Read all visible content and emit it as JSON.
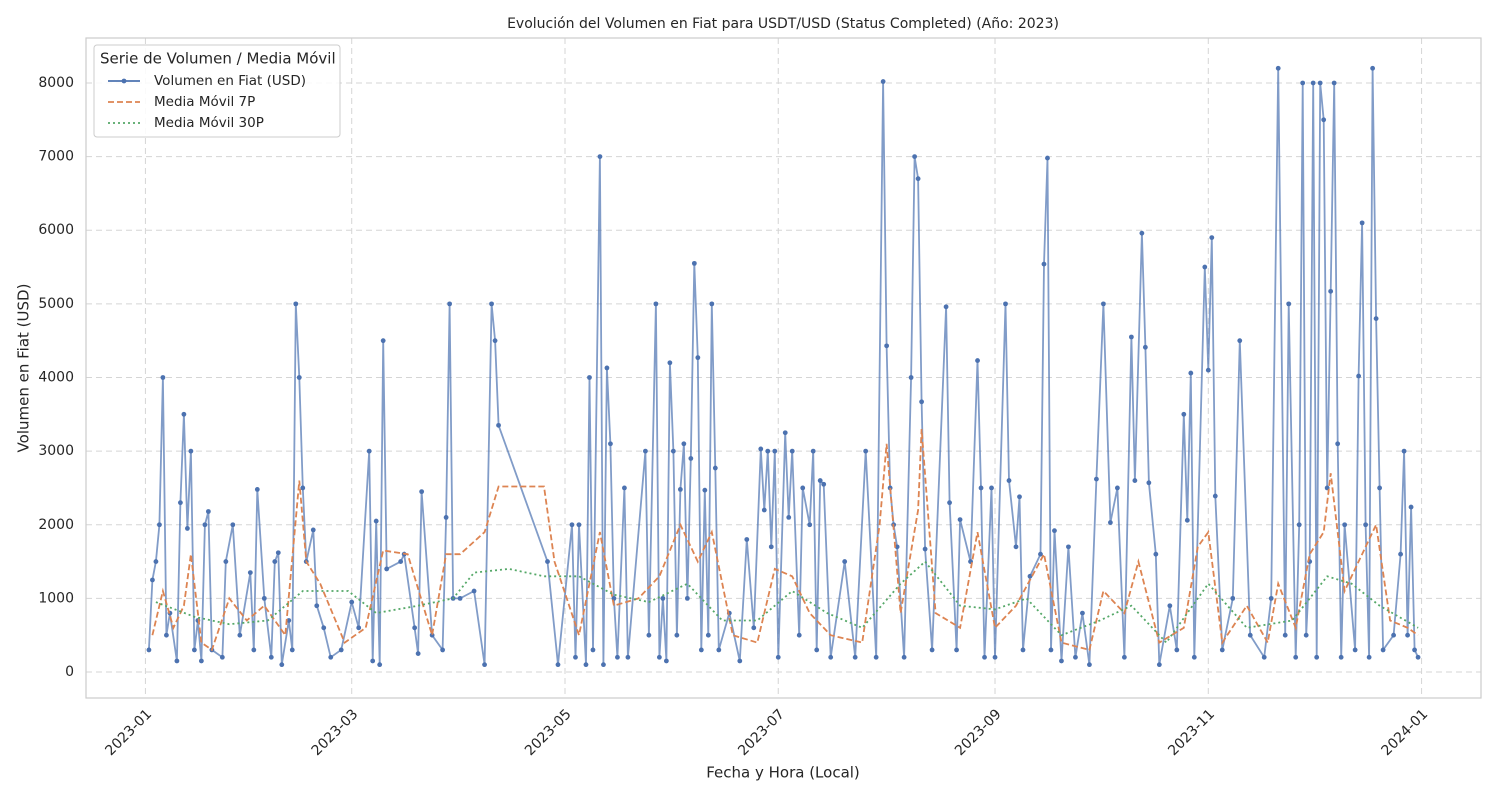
{
  "chart_data": {
    "type": "line",
    "title": "Evolución del Volumen en Fiat para USDT/USD (Status Completed) (Año: 2023)",
    "x_label": "Fecha y Hora (Local)",
    "y_label": "Volumen en Fiat (USD)",
    "legend_title": "Serie de Volumen / Media Móvil",
    "legend_position": "upper-left",
    "grid": true,
    "xlim": [
      "2022-12-15",
      "2024-01-18"
    ],
    "ylim": [
      -353,
      8611
    ],
    "xticks": [
      {
        "value": "2023-01-01",
        "label": "2023-01"
      },
      {
        "value": "2023-03-01",
        "label": "2023-03"
      },
      {
        "value": "2023-05-01",
        "label": "2023-05"
      },
      {
        "value": "2023-07-01",
        "label": "2023-07"
      },
      {
        "value": "2023-09-01",
        "label": "2023-09"
      },
      {
        "value": "2023-11-01",
        "label": "2023-11"
      },
      {
        "value": "2024-01-01",
        "label": "2024-01"
      }
    ],
    "yticks": [
      0,
      1000,
      2000,
      3000,
      4000,
      5000,
      6000,
      7000,
      8000
    ],
    "series": [
      {
        "name": "Volumen en Fiat (USD)",
        "color": "#4c72b0",
        "linestyle": "solid",
        "marker": "o",
        "x": [
          "2023-01-02",
          "2023-01-03",
          "2023-01-04",
          "2023-01-05",
          "2023-01-06",
          "2023-01-07",
          "2023-01-08",
          "2023-01-10",
          "2023-01-11",
          "2023-01-12",
          "2023-01-13",
          "2023-01-14",
          "2023-01-15",
          "2023-01-16",
          "2023-01-17",
          "2023-01-18",
          "2023-01-19",
          "2023-01-20",
          "2023-01-23",
          "2023-01-24",
          "2023-01-26",
          "2023-01-28",
          "2023-01-31",
          "2023-02-01",
          "2023-02-02",
          "2023-02-04",
          "2023-02-06",
          "2023-02-07",
          "2023-02-08",
          "2023-02-09",
          "2023-02-11",
          "2023-02-12",
          "2023-02-13",
          "2023-02-14",
          "2023-02-15",
          "2023-02-16",
          "2023-02-18",
          "2023-02-19",
          "2023-02-21",
          "2023-02-23",
          "2023-02-26",
          "2023-03-01",
          "2023-03-03",
          "2023-03-06",
          "2023-03-07",
          "2023-03-08",
          "2023-03-09",
          "2023-03-10",
          "2023-03-11",
          "2023-03-15",
          "2023-03-16",
          "2023-03-19",
          "2023-03-20",
          "2023-03-21",
          "2023-03-24",
          "2023-03-27",
          "2023-03-28",
          "2023-03-29",
          "2023-03-30",
          "2023-04-01",
          "2023-04-05",
          "2023-04-08",
          "2023-04-10",
          "2023-04-11",
          "2023-04-12",
          "2023-04-26",
          "2023-04-29",
          "2023-05-03",
          "2023-05-04",
          "2023-05-05",
          "2023-05-07",
          "2023-05-08",
          "2023-05-09",
          "2023-05-11",
          "2023-05-12",
          "2023-05-13",
          "2023-05-14",
          "2023-05-15",
          "2023-05-16",
          "2023-05-18",
          "2023-05-19",
          "2023-05-24",
          "2023-05-25",
          "2023-05-27",
          "2023-05-28",
          "2023-05-29",
          "2023-05-30",
          "2023-05-31",
          "2023-06-01",
          "2023-06-02",
          "2023-06-03",
          "2023-06-04",
          "2023-06-05",
          "2023-06-06",
          "2023-06-07",
          "2023-06-08",
          "2023-06-09",
          "2023-06-10",
          "2023-06-11",
          "2023-06-12",
          "2023-06-13",
          "2023-06-14",
          "2023-06-17",
          "2023-06-20",
          "2023-06-22",
          "2023-06-24",
          "2023-06-26",
          "2023-06-27",
          "2023-06-28",
          "2023-06-29",
          "2023-06-30",
          "2023-07-01",
          "2023-07-03",
          "2023-07-04",
          "2023-07-05",
          "2023-07-07",
          "2023-07-08",
          "2023-07-10",
          "2023-07-11",
          "2023-07-12",
          "2023-07-13",
          "2023-07-14",
          "2023-07-16",
          "2023-07-20",
          "2023-07-23",
          "2023-07-26",
          "2023-07-29",
          "2023-07-31",
          "2023-08-01",
          "2023-08-02",
          "2023-08-03",
          "2023-08-04",
          "2023-08-06",
          "2023-08-08",
          "2023-08-09",
          "2023-08-10",
          "2023-08-11",
          "2023-08-12",
          "2023-08-14",
          "2023-08-18",
          "2023-08-19",
          "2023-08-21",
          "2023-08-22",
          "2023-08-25",
          "2023-08-27",
          "2023-08-28",
          "2023-08-29",
          "2023-08-31",
          "2023-09-01",
          "2023-09-04",
          "2023-09-05",
          "2023-09-07",
          "2023-09-08",
          "2023-09-09",
          "2023-09-11",
          "2023-09-14",
          "2023-09-15",
          "2023-09-16",
          "2023-09-17",
          "2023-09-18",
          "2023-09-20",
          "2023-09-22",
          "2023-09-24",
          "2023-09-26",
          "2023-09-28",
          "2023-09-30",
          "2023-10-02",
          "2023-10-04",
          "2023-10-06",
          "2023-10-08",
          "2023-10-10",
          "2023-10-11",
          "2023-10-13",
          "2023-10-14",
          "2023-10-15",
          "2023-10-17",
          "2023-10-18",
          "2023-10-21",
          "2023-10-23",
          "2023-10-25",
          "2023-10-26",
          "2023-10-27",
          "2023-10-28",
          "2023-10-31",
          "2023-11-01",
          "2023-11-02",
          "2023-11-03",
          "2023-11-05",
          "2023-11-08",
          "2023-11-10",
          "2023-11-13",
          "2023-11-17",
          "2023-11-19",
          "2023-11-21",
          "2023-11-23",
          "2023-11-24",
          "2023-11-26",
          "2023-11-27",
          "2023-11-28",
          "2023-11-29",
          "2023-11-30",
          "2023-12-01",
          "2023-12-02",
          "2023-12-03",
          "2023-12-04",
          "2023-12-05",
          "2023-12-06",
          "2023-12-07",
          "2023-12-08",
          "2023-12-09",
          "2023-12-10",
          "2023-12-13",
          "2023-12-14",
          "2023-12-15",
          "2023-12-16",
          "2023-12-17",
          "2023-12-18",
          "2023-12-19",
          "2023-12-20",
          "2023-12-21",
          "2023-12-24",
          "2023-12-26",
          "2023-12-27",
          "2023-12-28",
          "2023-12-29",
          "2023-12-30",
          "2023-12-31"
        ],
        "values": [
          300,
          1250,
          1500,
          2000,
          4000,
          500,
          800,
          150,
          2300,
          3500,
          1950,
          3000,
          300,
          700,
          150,
          2000,
          2180,
          300,
          200,
          1500,
          2000,
          500,
          1350,
          300,
          2480,
          1000,
          200,
          1500,
          1620,
          100,
          700,
          300,
          5000,
          4000,
          2500,
          1500,
          1930,
          900,
          600,
          200,
          300,
          950,
          600,
          3000,
          150,
          2050,
          100,
          4500,
          1400,
          1500,
          1600,
          600,
          250,
          2450,
          500,
          300,
          2100,
          5000,
          1000,
          1000,
          1100,
          100,
          5000,
          4500,
          3350,
          1500,
          100,
          2000,
          200,
          2000,
          100,
          4000,
          300,
          7000,
          100,
          4130,
          3100,
          1000,
          200,
          2500,
          200,
          3000,
          500,
          5000,
          200,
          1000,
          150,
          4200,
          3000,
          500,
          2480,
          3100,
          1000,
          2900,
          5550,
          4270,
          300,
          2470,
          500,
          5000,
          2770,
          300,
          800,
          150,
          1800,
          600,
          3030,
          2200,
          3000,
          1700,
          3000,
          200,
          3250,
          2100,
          3000,
          500,
          2500,
          2000,
          3000,
          300,
          2600,
          2550,
          200,
          1500,
          200,
          3000,
          200,
          8020,
          4430,
          2500,
          2000,
          1700,
          200,
          4000,
          7000,
          6700,
          3670,
          1670,
          300,
          4960,
          2300,
          300,
          2070,
          1500,
          4230,
          2500,
          200,
          2500,
          200,
          5000,
          2600,
          1700,
          2380,
          300,
          1300,
          1600,
          5540,
          6980,
          300,
          1920,
          150,
          1700,
          200,
          800,
          100,
          2620,
          5000,
          2030,
          2500,
          200,
          4550,
          2600,
          5960,
          4410,
          2570,
          1600,
          100,
          900,
          300,
          3500,
          2060,
          4060,
          200,
          5500,
          4100,
          5900,
          2390,
          300,
          1000,
          4500,
          500,
          200,
          1000,
          8200,
          500,
          5000,
          200,
          2000,
          8000,
          500,
          1500,
          8000,
          200,
          8000,
          7500,
          2500,
          5170,
          8000,
          3100,
          200,
          2000,
          300,
          4020,
          6100,
          2000,
          200,
          8200,
          4800,
          2500,
          300,
          500,
          1600,
          3000,
          500,
          2240,
          300,
          200
        ]
      },
      {
        "name": "Media Móvil 7P",
        "color": "#dd8452",
        "linestyle": "dashed",
        "x": [
          "2023-01-03",
          "2023-01-06",
          "2023-01-09",
          "2023-01-12",
          "2023-01-14",
          "2023-01-17",
          "2023-01-20",
          "2023-01-25",
          "2023-01-30",
          "2023-02-04",
          "2023-02-10",
          "2023-02-14",
          "2023-02-16",
          "2023-02-20",
          "2023-02-27",
          "2023-03-05",
          "2023-03-10",
          "2023-03-17",
          "2023-03-24",
          "2023-03-28",
          "2023-04-01",
          "2023-04-08",
          "2023-04-12",
          "2023-04-25",
          "2023-04-28",
          "2023-05-05",
          "2023-05-11",
          "2023-05-15",
          "2023-05-22",
          "2023-05-28",
          "2023-06-03",
          "2023-06-08",
          "2023-06-12",
          "2023-06-18",
          "2023-06-25",
          "2023-06-30",
          "2023-07-05",
          "2023-07-10",
          "2023-07-16",
          "2023-07-25",
          "2023-07-30",
          "2023-08-01",
          "2023-08-05",
          "2023-08-10",
          "2023-08-11",
          "2023-08-15",
          "2023-08-22",
          "2023-08-27",
          "2023-09-01",
          "2023-09-07",
          "2023-09-15",
          "2023-09-20",
          "2023-09-28",
          "2023-10-02",
          "2023-10-08",
          "2023-10-12",
          "2023-10-18",
          "2023-10-25",
          "2023-10-29",
          "2023-11-01",
          "2023-11-05",
          "2023-11-12",
          "2023-11-18",
          "2023-11-21",
          "2023-11-26",
          "2023-11-30",
          "2023-12-04",
          "2023-12-06",
          "2023-12-10",
          "2023-12-15",
          "2023-12-19",
          "2023-12-23",
          "2023-12-28",
          "2023-12-31"
        ],
        "values": [
          500,
          1100,
          600,
          900,
          1600,
          400,
          300,
          1000,
          700,
          900,
          500,
          2600,
          1500,
          1200,
          400,
          600,
          1650,
          1600,
          500,
          1600,
          1600,
          1900,
          2520,
          2520,
          1500,
          500,
          1900,
          900,
          1000,
          1300,
          2000,
          1500,
          1900,
          500,
          400,
          1400,
          1300,
          800,
          500,
          400,
          2000,
          3100,
          800,
          2200,
          3300,
          800,
          600,
          1900,
          600,
          900,
          1600,
          400,
          300,
          1100,
          800,
          1500,
          400,
          600,
          1700,
          1900,
          400,
          900,
          400,
          1200,
          600,
          1600,
          1900,
          2700,
          1100,
          1600,
          2000,
          700,
          600,
          500
        ]
      },
      {
        "name": "Media Móvil 30P",
        "color": "#55a868",
        "linestyle": "dotted",
        "x": [
          "2023-01-04",
          "2023-01-15",
          "2023-01-25",
          "2023-02-05",
          "2023-02-15",
          "2023-02-28",
          "2023-03-08",
          "2023-03-20",
          "2023-03-30",
          "2023-04-05",
          "2023-04-15",
          "2023-04-25",
          "2023-05-05",
          "2023-05-15",
          "2023-05-25",
          "2023-06-05",
          "2023-06-15",
          "2023-06-25",
          "2023-07-05",
          "2023-07-15",
          "2023-07-25",
          "2023-08-05",
          "2023-08-12",
          "2023-08-22",
          "2023-09-01",
          "2023-09-10",
          "2023-09-20",
          "2023-10-01",
          "2023-10-10",
          "2023-10-20",
          "2023-11-01",
          "2023-11-12",
          "2023-11-25",
          "2023-12-05",
          "2023-12-12",
          "2023-12-20",
          "2023-12-31"
        ],
        "values": [
          950,
          750,
          650,
          700,
          1100,
          1100,
          800,
          900,
          1000,
          1350,
          1400,
          1300,
          1300,
          1050,
          950,
          1200,
          700,
          700,
          1100,
          800,
          600,
          1200,
          1500,
          900,
          850,
          1000,
          500,
          700,
          900,
          400,
          1200,
          600,
          700,
          1300,
          1200,
          900,
          600
        ]
      }
    ]
  }
}
